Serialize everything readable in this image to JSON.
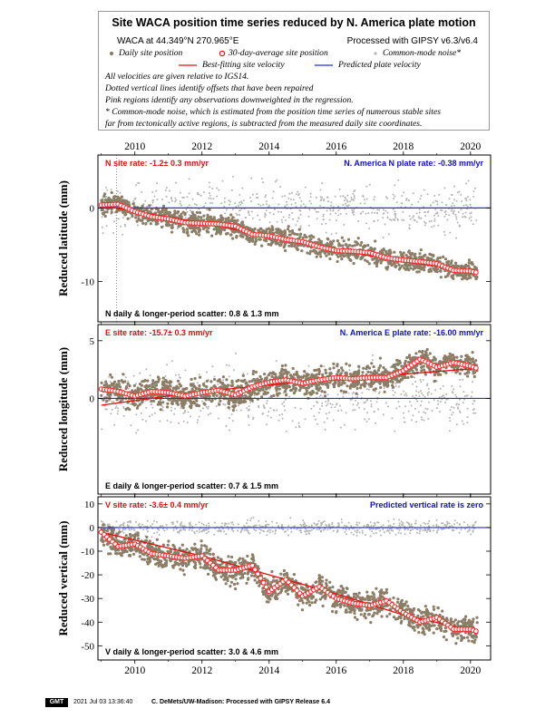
{
  "header": {
    "title": "Site WACA position time series reduced by N. America plate motion",
    "site_line": "WACA at 44.349°N 270.965°E",
    "processed_line": "Processed with GIPSY v6.3/v6.4",
    "legend": {
      "daily": "Daily site position",
      "avg30": "30-day-average site position",
      "common_mode": "Common-mode noise*",
      "best_fit": "Best-fitting site velocity",
      "predicted": "Predicted plate velocity"
    },
    "notes": [
      "All velocities are given relative to IGS14.",
      "Dotted vertical lines identify offsets that have been repaired",
      "Pink regions identify any observations downweighted in the regression.",
      "* Common-mode noise, which is estimated from the position time series of numerous stable sites",
      "far from tectonically active regions, is subtracted from the measured daily site coordinates."
    ]
  },
  "footer": {
    "badge": "GMT",
    "timestamp": "2021 Jul 03 13:36:40",
    "credit": "C. DeMets/UW-Madison: Processed with GIPSY Release 6.4"
  },
  "colors": {
    "daily": "#8b7d66",
    "common_mode": "#b4b4b4",
    "average_fill": "#ff2a2a",
    "fit_line": "#e01010",
    "plate_line": "#2a2ae6",
    "site_rate_text": "#e01010",
    "plate_rate_text": "#1010d0"
  },
  "chart_data": [
    {
      "type": "scatter",
      "panel": "north",
      "ylabel": "Reduced latitude (mm)",
      "x_ticks": [
        "2010",
        "2012",
        "2014",
        "2016",
        "2018",
        "2020"
      ],
      "top_ticks_labeled": true,
      "bottom_ticks_labeled": false,
      "yticks": [
        0,
        -10
      ],
      "ylim": [
        -15.5,
        7.2
      ],
      "xlim": [
        2008.9,
        2020.6
      ],
      "site_rate": "N site rate:  -1.2± 0.3 mm/yr",
      "plate_rate": "N. America N plate rate:  -0.38 mm/yr",
      "scatter_text": "N daily & longer-period scatter:   0.8 &   1.3 mm",
      "data_start": 2009.0,
      "data_end": 2020.2,
      "offset_year": 2009.45,
      "plate_level": 0,
      "fit": {
        "x": [
          2009.0,
          2012.0,
          2016.0,
          2018.0,
          2020.2
        ],
        "y": [
          0.3,
          -2.0,
          -5.7,
          -7.3,
          -8.7
        ]
      },
      "average_positions": {
        "x": [
          2009.0,
          2009.5,
          2010.0,
          2010.5,
          2011.0,
          2011.5,
          2012.0,
          2012.5,
          2013.0,
          2013.5,
          2014.0,
          2014.5,
          2015.0,
          2015.5,
          2016.0,
          2016.5,
          2017.0,
          2017.5,
          2018.0,
          2018.5,
          2019.0,
          2019.5,
          2020.0,
          2020.2
        ],
        "y": [
          0.4,
          0.5,
          -0.5,
          -1.2,
          -1.5,
          -2.0,
          -2.1,
          -2.2,
          -2.5,
          -3.6,
          -3.8,
          -4.3,
          -4.6,
          -5.3,
          -5.8,
          -5.9,
          -6.1,
          -6.8,
          -7.1,
          -7.3,
          -7.6,
          -8.5,
          -8.6,
          -8.8
        ]
      },
      "daily_spread": 1.3,
      "common_mode_spread": 3.2
    },
    {
      "type": "scatter",
      "panel": "east",
      "ylabel": "Reduced longitude (mm)",
      "x_ticks": [
        "2010",
        "2012",
        "2014",
        "2016",
        "2018",
        "2020"
      ],
      "top_ticks_labeled": false,
      "bottom_ticks_labeled": false,
      "yticks": [
        5,
        0
      ],
      "ylim": [
        -8.3,
        6.4
      ],
      "xlim": [
        2008.9,
        2020.6
      ],
      "site_rate": "E site rate:  -15.7± 0.3 mm/yr",
      "plate_rate": "N. America E plate rate:  -16.00 mm/yr",
      "scatter_text": "E daily & longer-period scatter:   0.7 &   1.5 mm",
      "data_start": 2009.0,
      "data_end": 2020.2,
      "offset_year": null,
      "plate_level": 0,
      "fit": {
        "x": [
          2009.0,
          2012.0,
          2016.0,
          2018.0,
          2020.2
        ],
        "y": [
          -0.6,
          0.6,
          1.7,
          2.1,
          2.6
        ]
      },
      "average_positions": {
        "x": [
          2009.0,
          2009.5,
          2010.0,
          2010.5,
          2011.0,
          2011.5,
          2012.0,
          2012.5,
          2013.0,
          2013.5,
          2014.0,
          2014.5,
          2015.0,
          2015.5,
          2016.0,
          2016.5,
          2017.0,
          2017.5,
          2018.0,
          2018.5,
          2019.0,
          2019.5,
          2020.0,
          2020.2
        ],
        "y": [
          0.8,
          0.6,
          0.2,
          0.6,
          0.5,
          0.2,
          0.5,
          0.7,
          0.3,
          1.0,
          1.4,
          1.6,
          1.3,
          1.6,
          1.8,
          1.7,
          1.8,
          1.8,
          2.4,
          3.4,
          2.7,
          3.1,
          2.8,
          2.6
        ]
      },
      "daily_spread": 1.1,
      "common_mode_spread": 2.6
    },
    {
      "type": "scatter",
      "panel": "vertical",
      "ylabel": "Reduced vertical (mm)",
      "x_ticks": [
        "2010",
        "2012",
        "2014",
        "2016",
        "2018",
        "2020"
      ],
      "top_ticks_labeled": false,
      "bottom_ticks_labeled": true,
      "yticks": [
        10,
        0,
        -10,
        -20,
        -30,
        -40,
        -50
      ],
      "ylim": [
        -56,
        13
      ],
      "xlim": [
        2008.9,
        2020.6
      ],
      "site_rate": "V site rate:  -3.6± 0.4 mm/yr",
      "plate_rate": "Predicted vertical rate is zero",
      "scatter_text": "V daily & longer-period scatter:   3.0 &   4.6 mm",
      "data_start": 2009.0,
      "data_end": 2020.2,
      "offset_year": null,
      "plate_level": 0,
      "fit": {
        "x": [
          2009.0,
          2012.0,
          2016.0,
          2018.0,
          2020.2
        ],
        "y": [
          -2,
          -12,
          -28,
          -37,
          -44
        ]
      },
      "average_positions": {
        "x": [
          2009.0,
          2009.5,
          2010.0,
          2010.5,
          2011.0,
          2011.5,
          2012.0,
          2012.5,
          2013.0,
          2013.5,
          2014.0,
          2014.5,
          2015.0,
          2015.5,
          2016.0,
          2016.5,
          2017.0,
          2017.5,
          2018.0,
          2018.5,
          2019.0,
          2019.5,
          2020.0,
          2020.2
        ],
        "y": [
          -2,
          -8,
          -7,
          -11,
          -12,
          -13,
          -12,
          -18,
          -18,
          -16,
          -27,
          -22,
          -29,
          -25,
          -30,
          -32,
          -33,
          -31,
          -36,
          -40,
          -38,
          -43,
          -43,
          -44
        ]
      },
      "daily_spread": 5.5,
      "common_mode_spread": 3.0
    }
  ]
}
